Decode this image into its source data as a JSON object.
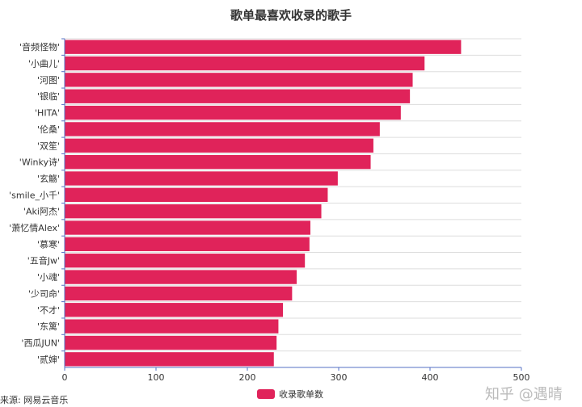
{
  "chart_data": {
    "type": "bar",
    "orientation": "horizontal",
    "title": "歌单最喜欢收录的歌手",
    "categories": [
      "'音频怪物'",
      "'小曲儿'",
      "'河图'",
      "'银临'",
      "'HITA'",
      "'伦桑'",
      "'双笙'",
      "'Winky诗'",
      "'玄觞'",
      "'smile_小千'",
      "'Aki阿杰'",
      "'萧忆情Alex'",
      "'慕寒'",
      "'五音Jw'",
      "'小魂'",
      "'少司命'",
      "'不才'",
      "'东篱'",
      "'西瓜JUN'",
      "'贰婶'"
    ],
    "series": [
      {
        "name": "收录歌单数",
        "values": [
          434,
          394,
          381,
          378,
          368,
          345,
          338,
          335,
          299,
          288,
          281,
          269,
          268,
          263,
          254,
          249,
          239,
          234,
          232,
          229
        ]
      }
    ],
    "xlim": [
      0,
      500
    ],
    "xticks": [
      0,
      100,
      200,
      300,
      400,
      500
    ],
    "legend": "bottom",
    "grid": true,
    "bar_color": "#e0235a"
  },
  "source": "来源: 网易云音乐",
  "watermark": "知乎 @遇晴"
}
